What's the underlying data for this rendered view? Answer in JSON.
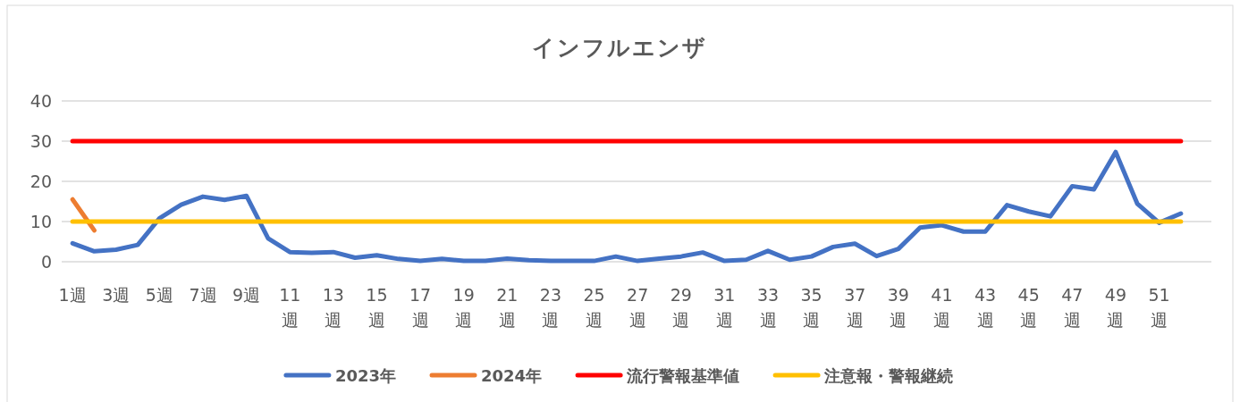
{
  "chart_data": {
    "type": "line",
    "title": "インフルエンザ",
    "categories": [
      "1週",
      null,
      "3週",
      null,
      "5週",
      null,
      "7週",
      null,
      "9週",
      null,
      "11週",
      null,
      "13週",
      null,
      "15週",
      null,
      "17週",
      null,
      "19週",
      null,
      "21週",
      null,
      "23週",
      null,
      "25週",
      null,
      "27週",
      null,
      "29週",
      null,
      "31週",
      null,
      "33週",
      null,
      "35週",
      null,
      "37週",
      null,
      "39週",
      null,
      "41週",
      null,
      "43週",
      null,
      "45週",
      null,
      "47週",
      null,
      "49週",
      null,
      "51週",
      null
    ],
    "series": [
      {
        "name": "2023年",
        "color": "#4472c4",
        "values": [
          4.6,
          2.6,
          3.0,
          4.2,
          10.8,
          14.2,
          16.2,
          15.4,
          16.4,
          5.8,
          2.4,
          2.2,
          2.4,
          1.0,
          1.6,
          0.7,
          0.2,
          0.7,
          0.2,
          0.2,
          0.8,
          0.4,
          0.2,
          0.2,
          0.2,
          1.3,
          0.2,
          0.8,
          1.3,
          2.3,
          0.2,
          0.5,
          2.7,
          0.5,
          1.3,
          3.7,
          4.5,
          1.4,
          3.2,
          8.5,
          9.1,
          7.5,
          7.5,
          14.1,
          12.5,
          11.3,
          18.8,
          18.0,
          27.3,
          14.4,
          9.7,
          12.0
        ]
      },
      {
        "name": "2024年",
        "color": "#ed7d31",
        "values": [
          15.5,
          7.8,
          null,
          null,
          null,
          null,
          null,
          null,
          null,
          null,
          null,
          null,
          null,
          null,
          null,
          null,
          null,
          null,
          null,
          null,
          null,
          null,
          null,
          null,
          null,
          null,
          null,
          null,
          null,
          null,
          null,
          null,
          null,
          null,
          null,
          null,
          null,
          null,
          null,
          null,
          null,
          null,
          null,
          null,
          null,
          null,
          null,
          null,
          null,
          null,
          null,
          null
        ]
      },
      {
        "name": "流行警報基準値",
        "color": "#ff0000",
        "values": [
          30,
          30,
          30,
          30,
          30,
          30,
          30,
          30,
          30,
          30,
          30,
          30,
          30,
          30,
          30,
          30,
          30,
          30,
          30,
          30,
          30,
          30,
          30,
          30,
          30,
          30,
          30,
          30,
          30,
          30,
          30,
          30,
          30,
          30,
          30,
          30,
          30,
          30,
          30,
          30,
          30,
          30,
          30,
          30,
          30,
          30,
          30,
          30,
          30,
          30,
          30,
          30
        ]
      },
      {
        "name": "注意報・警報継続",
        "color": "#ffc000",
        "values": [
          10,
          10,
          10,
          10,
          10,
          10,
          10,
          10,
          10,
          10,
          10,
          10,
          10,
          10,
          10,
          10,
          10,
          10,
          10,
          10,
          10,
          10,
          10,
          10,
          10,
          10,
          10,
          10,
          10,
          10,
          10,
          10,
          10,
          10,
          10,
          10,
          10,
          10,
          10,
          10,
          10,
          10,
          10,
          10,
          10,
          10,
          10,
          10,
          10,
          10,
          10,
          10
        ]
      }
    ],
    "ylim": [
      0,
      40
    ],
    "yticks": [
      0,
      10,
      20,
      30,
      40
    ],
    "grid": "y",
    "legend": "bottom",
    "marker": "none",
    "line_style": "solid"
  }
}
